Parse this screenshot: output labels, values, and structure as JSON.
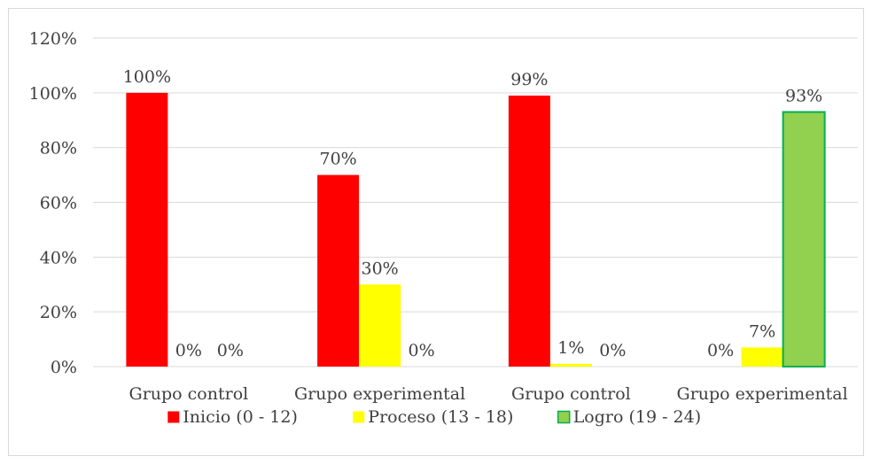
{
  "chart_data": {
    "type": "bar",
    "title": "",
    "xlabel": "",
    "ylabel": "",
    "categories": [
      "Grupo control",
      "Grupo experimental",
      "Grupo control",
      "Grupo experimental"
    ],
    "series": [
      {
        "name": "Inicio (0 - 12)",
        "color": "#ff0000",
        "values": [
          100,
          70,
          99,
          0
        ],
        "labels": [
          "100%",
          "70%",
          "99%",
          "0%"
        ]
      },
      {
        "name": "Proceso (13 - 18)",
        "color": "#ffff00",
        "values": [
          0,
          30,
          1,
          7
        ],
        "labels": [
          "0%",
          "30%",
          "1%",
          "7%"
        ]
      },
      {
        "name": "Logro (19 - 24)",
        "color": "#92d050",
        "values": [
          0,
          0,
          0,
          93
        ],
        "labels": [
          "0%",
          "0%",
          "0%",
          "93%"
        ]
      }
    ],
    "ylim": [
      0,
      120
    ],
    "yticks": [
      0,
      20,
      40,
      60,
      80,
      100,
      120
    ],
    "ytick_labels": [
      "0%",
      "20%",
      "40%",
      "60%",
      "80%",
      "100%",
      "120%"
    ],
    "grid": true,
    "legend_position": "bottom"
  }
}
